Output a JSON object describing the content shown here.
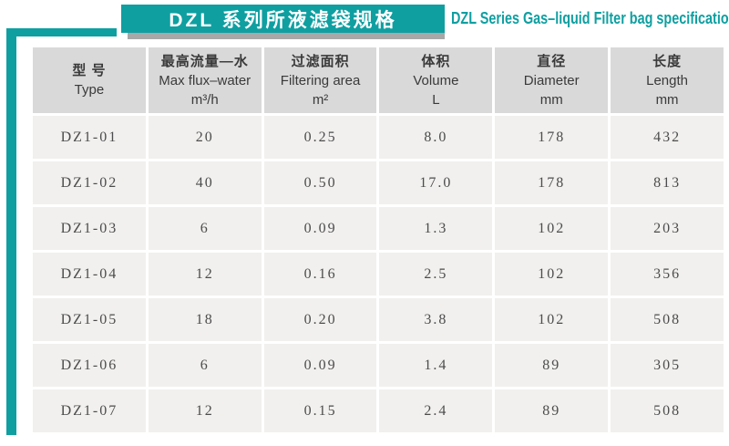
{
  "colors": {
    "teal": "#0f9fa1",
    "header_bg": "#d9d9d9",
    "row_bg": "#f1f0ee",
    "shadow": "#a8a8a8"
  },
  "banner": {
    "title_zh": "DZL 系列所液滤袋规格",
    "title_en": "DZL Series Gas–liquid Filter bag specifications"
  },
  "table": {
    "columns": [
      {
        "zh": "型 号",
        "en": "Type",
        "unit": ""
      },
      {
        "zh": "最高流量—水",
        "en": "Max flux–water",
        "unit": "m³/h"
      },
      {
        "zh": "过滤面积",
        "en": "Filtering area",
        "unit": "m²"
      },
      {
        "zh": "体积",
        "en": "Volume",
        "unit": "L"
      },
      {
        "zh": "直径",
        "en": "Diameter",
        "unit": "mm"
      },
      {
        "zh": "长度",
        "en": "Length",
        "unit": "mm"
      }
    ],
    "rows": [
      [
        "DZ1-01",
        "20",
        "0.25",
        "8.0",
        "178",
        "432"
      ],
      [
        "DZ1-02",
        "40",
        "0.50",
        "17.0",
        "178",
        "813"
      ],
      [
        "DZ1-03",
        "6",
        "0.09",
        "1.3",
        "102",
        "203"
      ],
      [
        "DZ1-04",
        "12",
        "0.16",
        "2.5",
        "102",
        "356"
      ],
      [
        "DZ1-05",
        "18",
        "0.20",
        "3.8",
        "102",
        "508"
      ],
      [
        "DZ1-06",
        "6",
        "0.09",
        "1.4",
        "89",
        "305"
      ],
      [
        "DZ1-07",
        "12",
        "0.15",
        "2.4",
        "89",
        "508"
      ]
    ]
  }
}
